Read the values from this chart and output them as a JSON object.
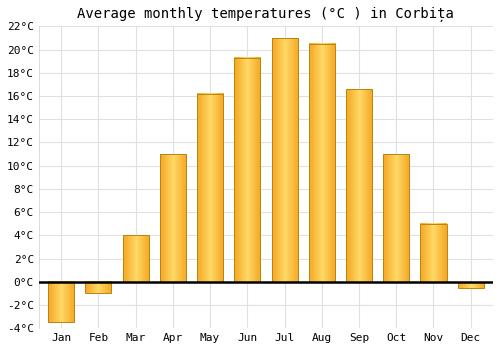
{
  "title": "Average monthly temperatures (°C ) in Corbița",
  "months": [
    "Jan",
    "Feb",
    "Mar",
    "Apr",
    "May",
    "Jun",
    "Jul",
    "Aug",
    "Sep",
    "Oct",
    "Nov",
    "Dec"
  ],
  "values": [
    -3.5,
    -1.0,
    4.0,
    11.0,
    16.2,
    19.3,
    21.0,
    20.5,
    16.6,
    11.0,
    5.0,
    -0.5
  ],
  "bar_color_left": "#F5A623",
  "bar_color_mid": "#FFD966",
  "bar_color_right": "#F5A623",
  "bar_edge_color": "#B8860B",
  "ylim": [
    -4,
    22
  ],
  "yticks": [
    -4,
    -2,
    0,
    2,
    4,
    6,
    8,
    10,
    12,
    14,
    16,
    18,
    20,
    22
  ],
  "ytick_labels": [
    "-4°C",
    "-2°C",
    "0°C",
    "2°C",
    "4°C",
    "6°C",
    "8°C",
    "10°C",
    "12°C",
    "14°C",
    "16°C",
    "18°C",
    "20°C",
    "22°C"
  ],
  "background_color": "#ffffff",
  "grid_color": "#e0e0e0",
  "title_fontsize": 10,
  "tick_fontsize": 8,
  "bar_width": 0.7
}
